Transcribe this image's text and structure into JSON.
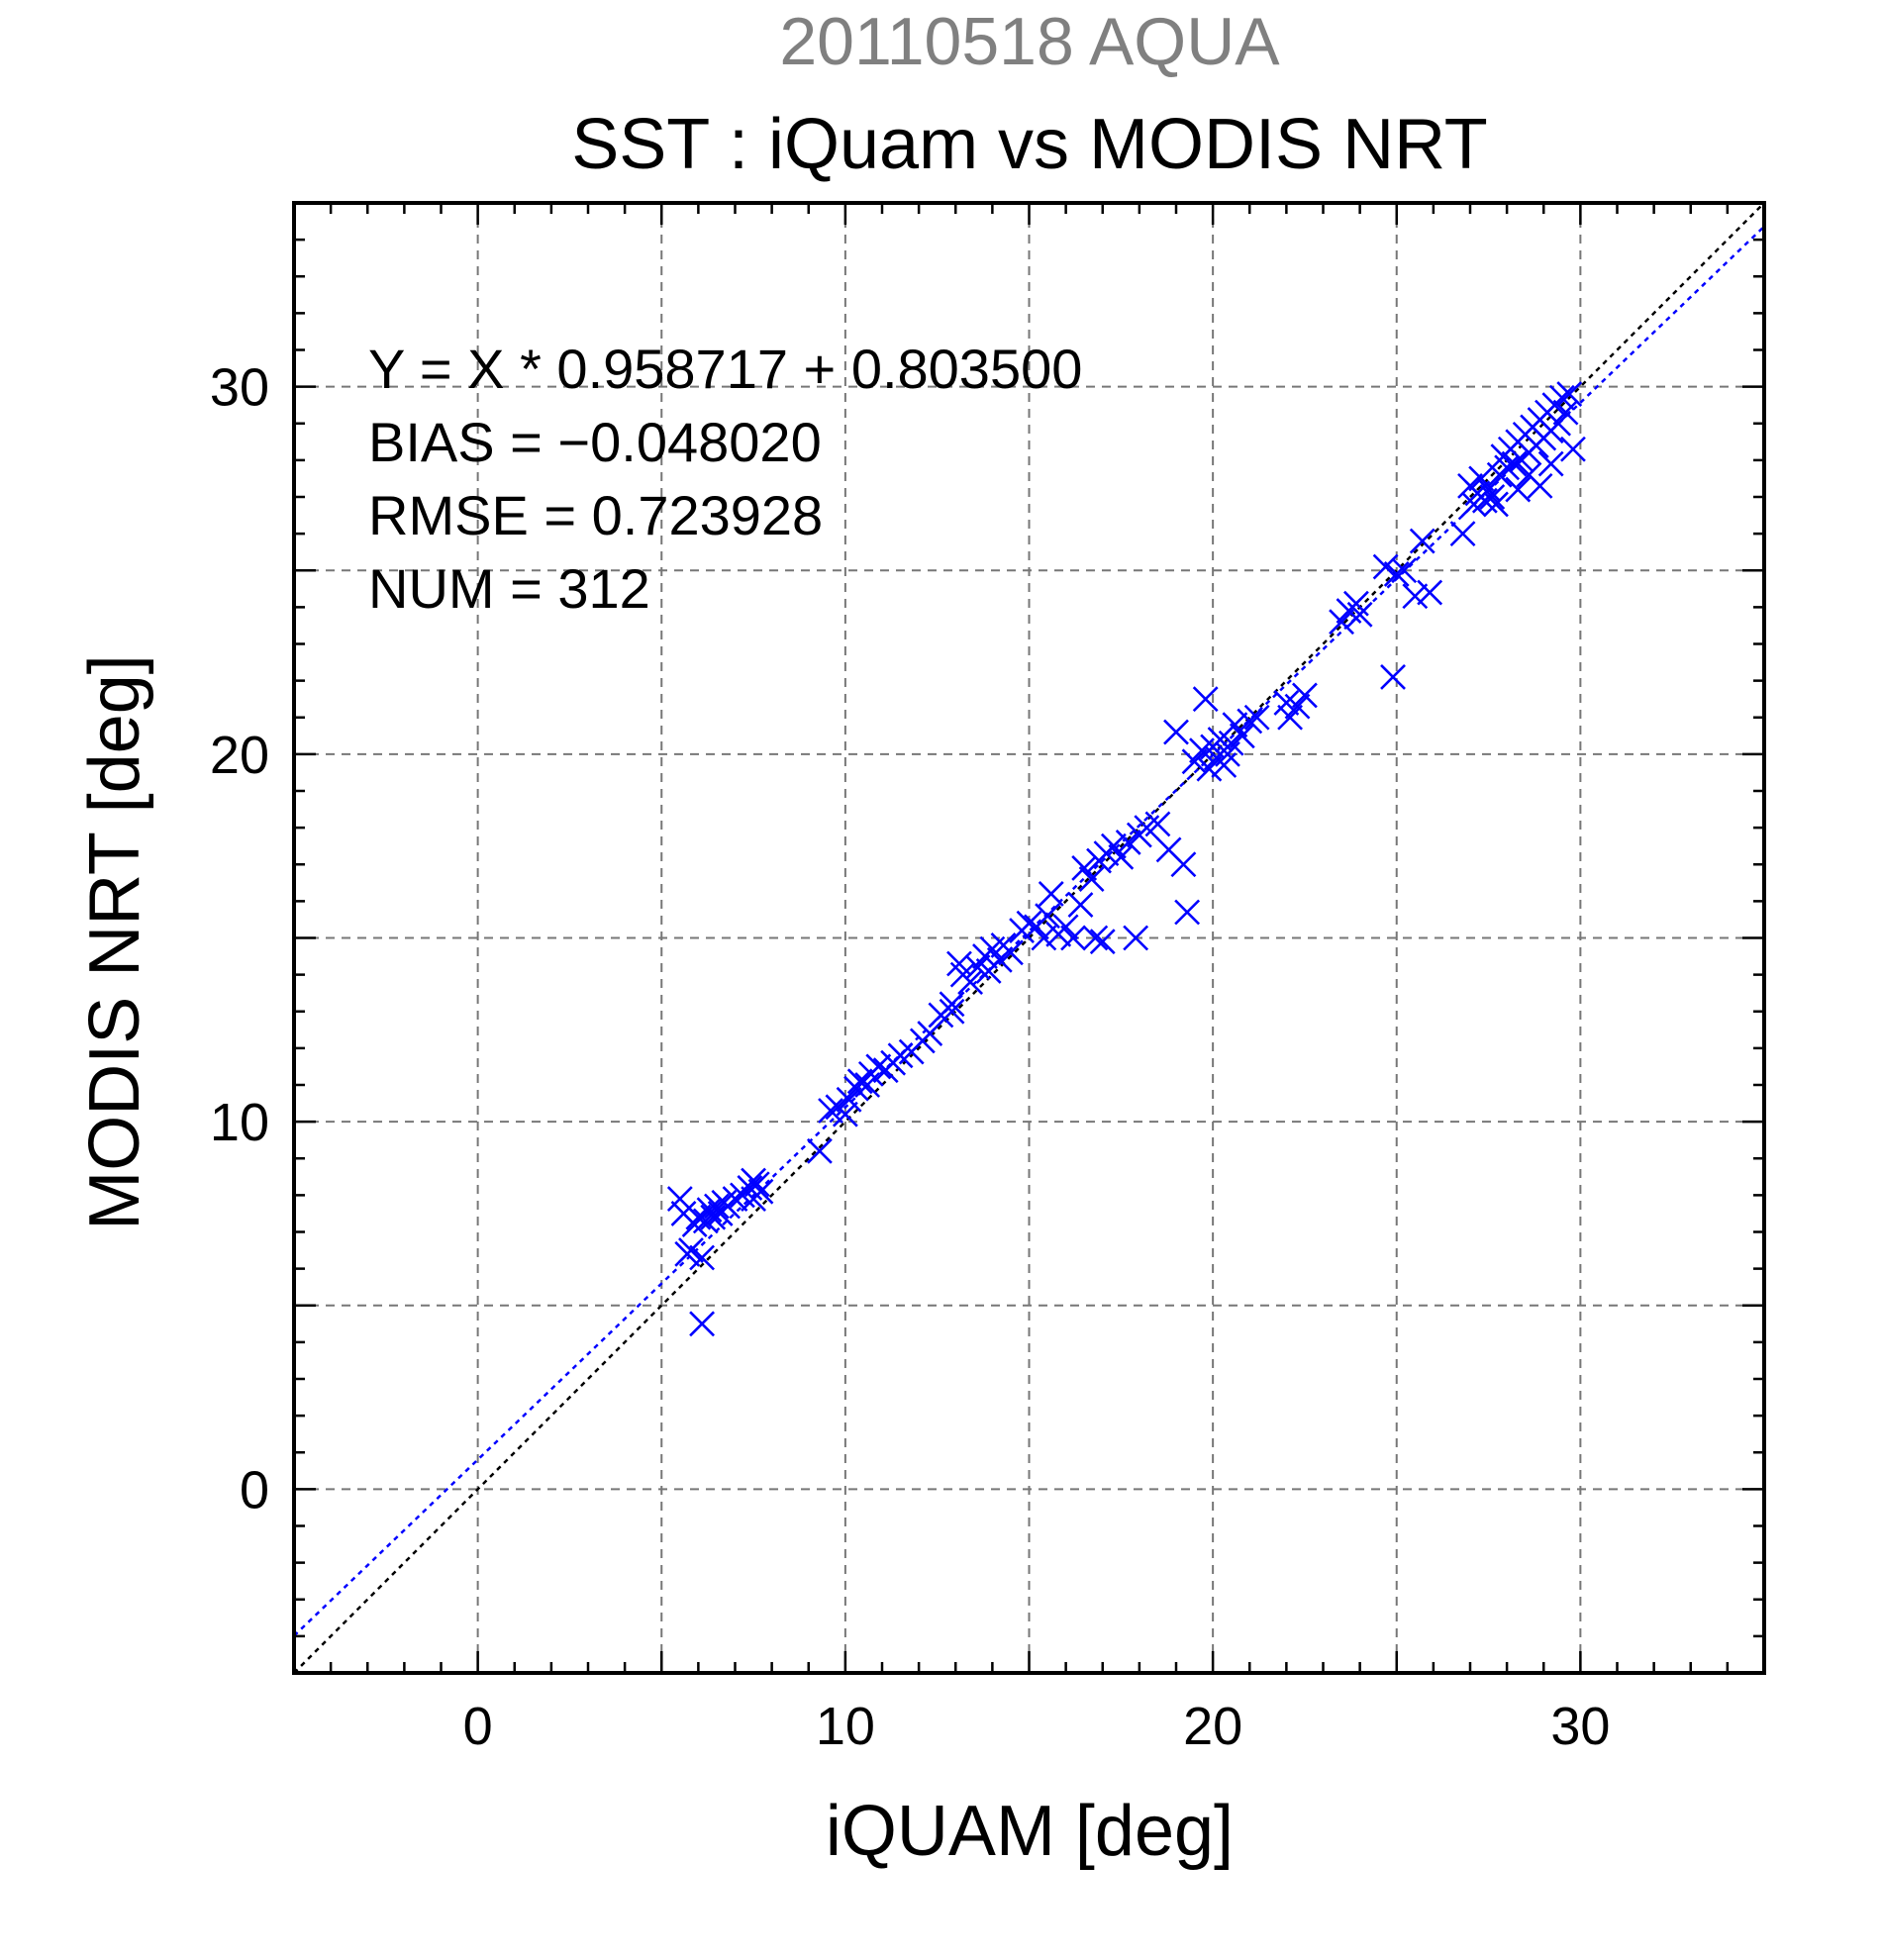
{
  "supertitle": "20110518 AQUA",
  "chart_data": {
    "type": "scatter",
    "title": "SST : iQuam vs MODIS NRT",
    "xlabel": "iQUAM [deg]",
    "ylabel": "MODIS NRT [deg]",
    "xlim": [
      -5,
      35
    ],
    "ylim": [
      -5,
      35
    ],
    "xticks": [
      0,
      10,
      20,
      30
    ],
    "yticks": [
      0,
      10,
      20,
      30
    ],
    "xtick_labels": [
      "0",
      "10",
      "20",
      "30"
    ],
    "ytick_labels": [
      "0",
      "10",
      "20",
      "30"
    ],
    "grid": true,
    "marker": "x",
    "marker_color": "#0000ff",
    "fit_line": {
      "slope": 0.958717,
      "intercept": 0.8035,
      "color": "#0000ff",
      "style": "dotted"
    },
    "identity_line": {
      "slope": 1,
      "intercept": 0,
      "color": "#000000",
      "style": "dotted"
    },
    "annotations": [
      "Y = X * 0.958717 + 0.803500",
      "BIAS = −0.048020",
      "RMSE = 0.723928",
      "NUM = 312"
    ],
    "points": [
      [
        5.5,
        7.9
      ],
      [
        5.6,
        7.5
      ],
      [
        5.7,
        6.4
      ],
      [
        5.8,
        6.5
      ],
      [
        5.9,
        7.2
      ],
      [
        6.0,
        7.4
      ],
      [
        6.1,
        4.5
      ],
      [
        6.1,
        6.3
      ],
      [
        6.2,
        7.3
      ],
      [
        6.3,
        7.6
      ],
      [
        6.4,
        7.4
      ],
      [
        6.5,
        7.7
      ],
      [
        6.6,
        7.5
      ],
      [
        6.7,
        7.8
      ],
      [
        6.8,
        7.7
      ],
      [
        7.0,
        7.9
      ],
      [
        7.2,
        8.0
      ],
      [
        7.4,
        8.2
      ],
      [
        7.5,
        7.9
      ],
      [
        7.5,
        8.4
      ],
      [
        7.6,
        8.3
      ],
      [
        7.7,
        8.1
      ],
      [
        9.3,
        9.2
      ],
      [
        9.6,
        10.3
      ],
      [
        9.8,
        10.4
      ],
      [
        10.0,
        10.2
      ],
      [
        10.1,
        10.6
      ],
      [
        10.3,
        10.9
      ],
      [
        10.4,
        11.1
      ],
      [
        10.6,
        11.0
      ],
      [
        10.7,
        11.3
      ],
      [
        10.9,
        11.5
      ],
      [
        11.1,
        11.4
      ],
      [
        11.3,
        11.6
      ],
      [
        11.5,
        11.8
      ],
      [
        11.8,
        11.9
      ],
      [
        12.1,
        12.2
      ],
      [
        12.3,
        12.4
      ],
      [
        12.6,
        12.9
      ],
      [
        12.9,
        13.2
      ],
      [
        12.9,
        13.0
      ],
      [
        13.1,
        14.3
      ],
      [
        13.2,
        14.0
      ],
      [
        13.4,
        13.8
      ],
      [
        13.6,
        14.2
      ],
      [
        13.8,
        14.5
      ],
      [
        13.9,
        14.1
      ],
      [
        14.0,
        14.7
      ],
      [
        14.2,
        14.4
      ],
      [
        14.3,
        14.8
      ],
      [
        14.5,
        14.6
      ],
      [
        14.8,
        15.2
      ],
      [
        15.0,
        15.4
      ],
      [
        15.2,
        15.3
      ],
      [
        15.4,
        15.0
      ],
      [
        15.5,
        15.6
      ],
      [
        15.6,
        16.2
      ],
      [
        15.8,
        15.1
      ],
      [
        16.0,
        15.3
      ],
      [
        16.2,
        15.0
      ],
      [
        16.4,
        15.9
      ],
      [
        16.5,
        16.9
      ],
      [
        16.7,
        16.6
      ],
      [
        16.8,
        15.0
      ],
      [
        16.9,
        17.1
      ],
      [
        17.0,
        14.9
      ],
      [
        17.1,
        17.3
      ],
      [
        17.3,
        17.5
      ],
      [
        17.5,
        17.2
      ],
      [
        17.7,
        17.6
      ],
      [
        17.9,
        15.0
      ],
      [
        18.0,
        17.8
      ],
      [
        18.2,
        18.0
      ],
      [
        18.5,
        18.1
      ],
      [
        18.8,
        17.4
      ],
      [
        19.0,
        20.6
      ],
      [
        19.2,
        17.0
      ],
      [
        19.3,
        15.7
      ],
      [
        19.5,
        19.8
      ],
      [
        19.7,
        20.1
      ],
      [
        19.8,
        21.5
      ],
      [
        19.9,
        19.6
      ],
      [
        20.0,
        20.2
      ],
      [
        20.1,
        19.9
      ],
      [
        20.2,
        20.4
      ],
      [
        20.3,
        19.7
      ],
      [
        20.4,
        20.0
      ],
      [
        20.5,
        20.3
      ],
      [
        20.6,
        20.8
      ],
      [
        20.8,
        20.5
      ],
      [
        21.0,
        20.9
      ],
      [
        21.2,
        21.0
      ],
      [
        22.0,
        21.4
      ],
      [
        22.1,
        21.0
      ],
      [
        22.3,
        21.3
      ],
      [
        22.5,
        21.6
      ],
      [
        23.5,
        23.6
      ],
      [
        23.7,
        23.9
      ],
      [
        23.9,
        24.1
      ],
      [
        24.0,
        23.8
      ],
      [
        24.7,
        25.1
      ],
      [
        24.9,
        22.1
      ],
      [
        25.0,
        24.9
      ],
      [
        25.2,
        25.0
      ],
      [
        25.5,
        24.3
      ],
      [
        25.7,
        25.8
      ],
      [
        25.9,
        24.4
      ],
      [
        26.8,
        26.0
      ],
      [
        27.0,
        27.3
      ],
      [
        27.1,
        26.8
      ],
      [
        27.2,
        27.1
      ],
      [
        27.3,
        27.5
      ],
      [
        27.4,
        26.9
      ],
      [
        27.5,
        27.2
      ],
      [
        27.6,
        27.0
      ],
      [
        27.7,
        26.8
      ],
      [
        27.8,
        27.6
      ],
      [
        27.9,
        28.1
      ],
      [
        28.0,
        27.8
      ],
      [
        28.1,
        28.3
      ],
      [
        28.2,
        27.9
      ],
      [
        28.3,
        28.5
      ],
      [
        28.4,
        28.0
      ],
      [
        28.5,
        28.7
      ],
      [
        28.6,
        28.2
      ],
      [
        28.7,
        28.9
      ],
      [
        28.8,
        28.4
      ],
      [
        28.9,
        29.1
      ],
      [
        29.0,
        28.6
      ],
      [
        29.1,
        29.3
      ],
      [
        29.2,
        28.8
      ],
      [
        29.3,
        29.5
      ],
      [
        29.4,
        29.0
      ],
      [
        29.5,
        29.7
      ],
      [
        29.6,
        29.3
      ],
      [
        29.7,
        29.8
      ],
      [
        29.8,
        28.3
      ],
      [
        28.9,
        27.3
      ],
      [
        28.6,
        27.6
      ],
      [
        29.2,
        27.9
      ],
      [
        28.3,
        27.2
      ]
    ]
  }
}
